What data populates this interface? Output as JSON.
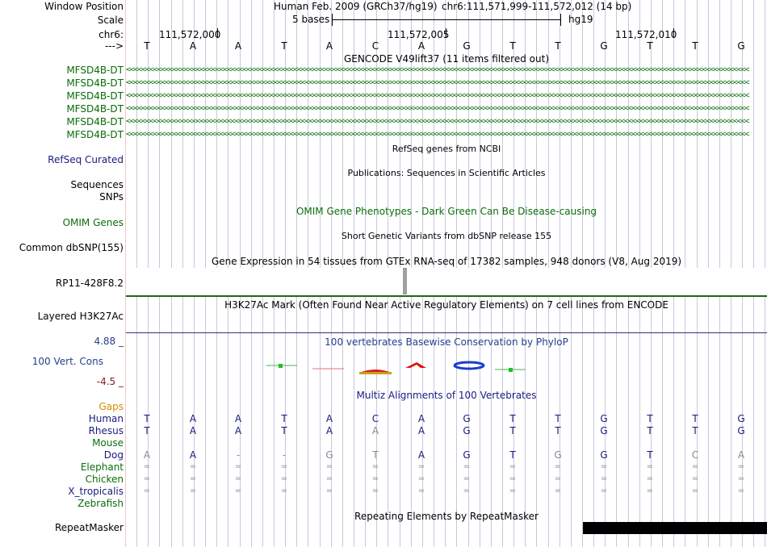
{
  "header": {
    "window_position_label": "Window Position",
    "scale_label": "Scale",
    "chrom_label": "chr6:",
    "strand_label": "--->",
    "assembly_text": "Human Feb. 2009 (GRCh37/hg19)",
    "position_text": "chr6:111,571,999-111,572,012 (14 bp)",
    "scale_text": "5 bases",
    "db_text": "hg19",
    "coord_ticks": [
      "111,572,000",
      "111,572,005",
      "111,572,010"
    ]
  },
  "bases": [
    "T",
    "A",
    "A",
    "T",
    "A",
    "C",
    "A",
    "G",
    "T",
    "T",
    "G",
    "T",
    "T",
    "G"
  ],
  "gencode": {
    "title": "GENCODE V49lift37 (11 items filtered out)",
    "genes": [
      "MFSD4B-DT",
      "MFSD4B-DT",
      "MFSD4B-DT",
      "MFSD4B-DT",
      "MFSD4B-DT",
      "MFSD4B-DT"
    ],
    "strand_glyphs": "<<<<<<<<<<<<<<<<<<<<<<<<<<<<<<<<<<<<<<<<<<<<<<<<<<<<<<<<<<<<<<<<<<<<<<<<<<<<<<<<<<<<<<<<<<<<<<<<<<<<<<<<<<<<<<<<<<<<<<<<<<<<<<<<<<<<<<<<<<<<<<<<<<<<<<<<<<<<<<<<"
  },
  "tracks": {
    "refseq_label": "RefSeq Curated",
    "refseq_title": "RefSeq genes from NCBI",
    "publications_title": "Publications: Sequences in Scientific Articles",
    "sequences_label": "Sequences",
    "snps_label": "SNPs",
    "omim_title": "OMIM Gene Phenotypes - Dark Green Can Be Disease-causing",
    "omim_label": "OMIM Genes",
    "dbsnp_title": "Short Genetic Variants from dbSNP release 155",
    "dbsnp_label": "Common dbSNP(155)",
    "gtex_title": "Gene Expression in 54 tissues from GTEx RNA-seq of 17382 samples, 948 donors (V8, Aug 2019)",
    "gtex_label": "RP11-428F8.2",
    "h3k27ac_title": "H3K27Ac Mark (Often Found Near Active Regulatory Elements) on 7 cell lines from ENCODE",
    "h3k27ac_label": "Layered H3K27Ac",
    "phylop_title": "100 vertebrates Basewise Conservation by PhyloP",
    "phylop_label": "100 Vert. Cons",
    "phylop_max": "4.88 _",
    "phylop_min": "-4.5 _",
    "multiz_title": "Multiz Alignments of 100 Vertebrates",
    "gaps_label": "Gaps",
    "repeat_title": "Repeating Elements by RepeatMasker",
    "repeat_label": "RepeatMasker"
  },
  "alignment": [
    {
      "species": "Human",
      "bases": [
        "T",
        "A",
        "A",
        "T",
        "A",
        "C",
        "A",
        "G",
        "T",
        "T",
        "G",
        "T",
        "T",
        "G"
      ]
    },
    {
      "species": "Rhesus",
      "bases": [
        "T",
        "A",
        "A",
        "T",
        "A",
        "A",
        "A",
        "G",
        "T",
        "T",
        "G",
        "T",
        "T",
        "G"
      ]
    },
    {
      "species": "Mouse",
      "bases": []
    },
    {
      "species": "Dog",
      "bases": [
        "A",
        "A",
        "-",
        "-",
        "G",
        "T",
        "A",
        "G",
        "T",
        "G",
        "G",
        "T",
        "C",
        "A"
      ]
    },
    {
      "species": "Elephant",
      "bases": [
        "=",
        "=",
        "=",
        "=",
        "=",
        "=",
        "=",
        "=",
        "=",
        "=",
        "=",
        "=",
        "=",
        "="
      ]
    },
    {
      "species": "Chicken",
      "bases": [
        "=",
        "=",
        "=",
        "=",
        "=",
        "=",
        "=",
        "=",
        "=",
        "=",
        "=",
        "=",
        "=",
        "="
      ]
    },
    {
      "species": "X_tropicalis",
      "bases": [
        "=",
        "=",
        "=",
        "=",
        "=",
        "=",
        "=",
        "=",
        "=",
        "=",
        "=",
        "=",
        "=",
        "="
      ]
    },
    {
      "species": "Zebrafish",
      "bases": []
    }
  ],
  "colors": {
    "gene_green": "#0a6d0a",
    "label_navy": "#1a1a80",
    "gtex_bar": "#a0a0a0",
    "h3k27ac_line": "#1a6b1a",
    "phylop_line": "#3b2f7a",
    "repeat_bar": "#000000"
  }
}
